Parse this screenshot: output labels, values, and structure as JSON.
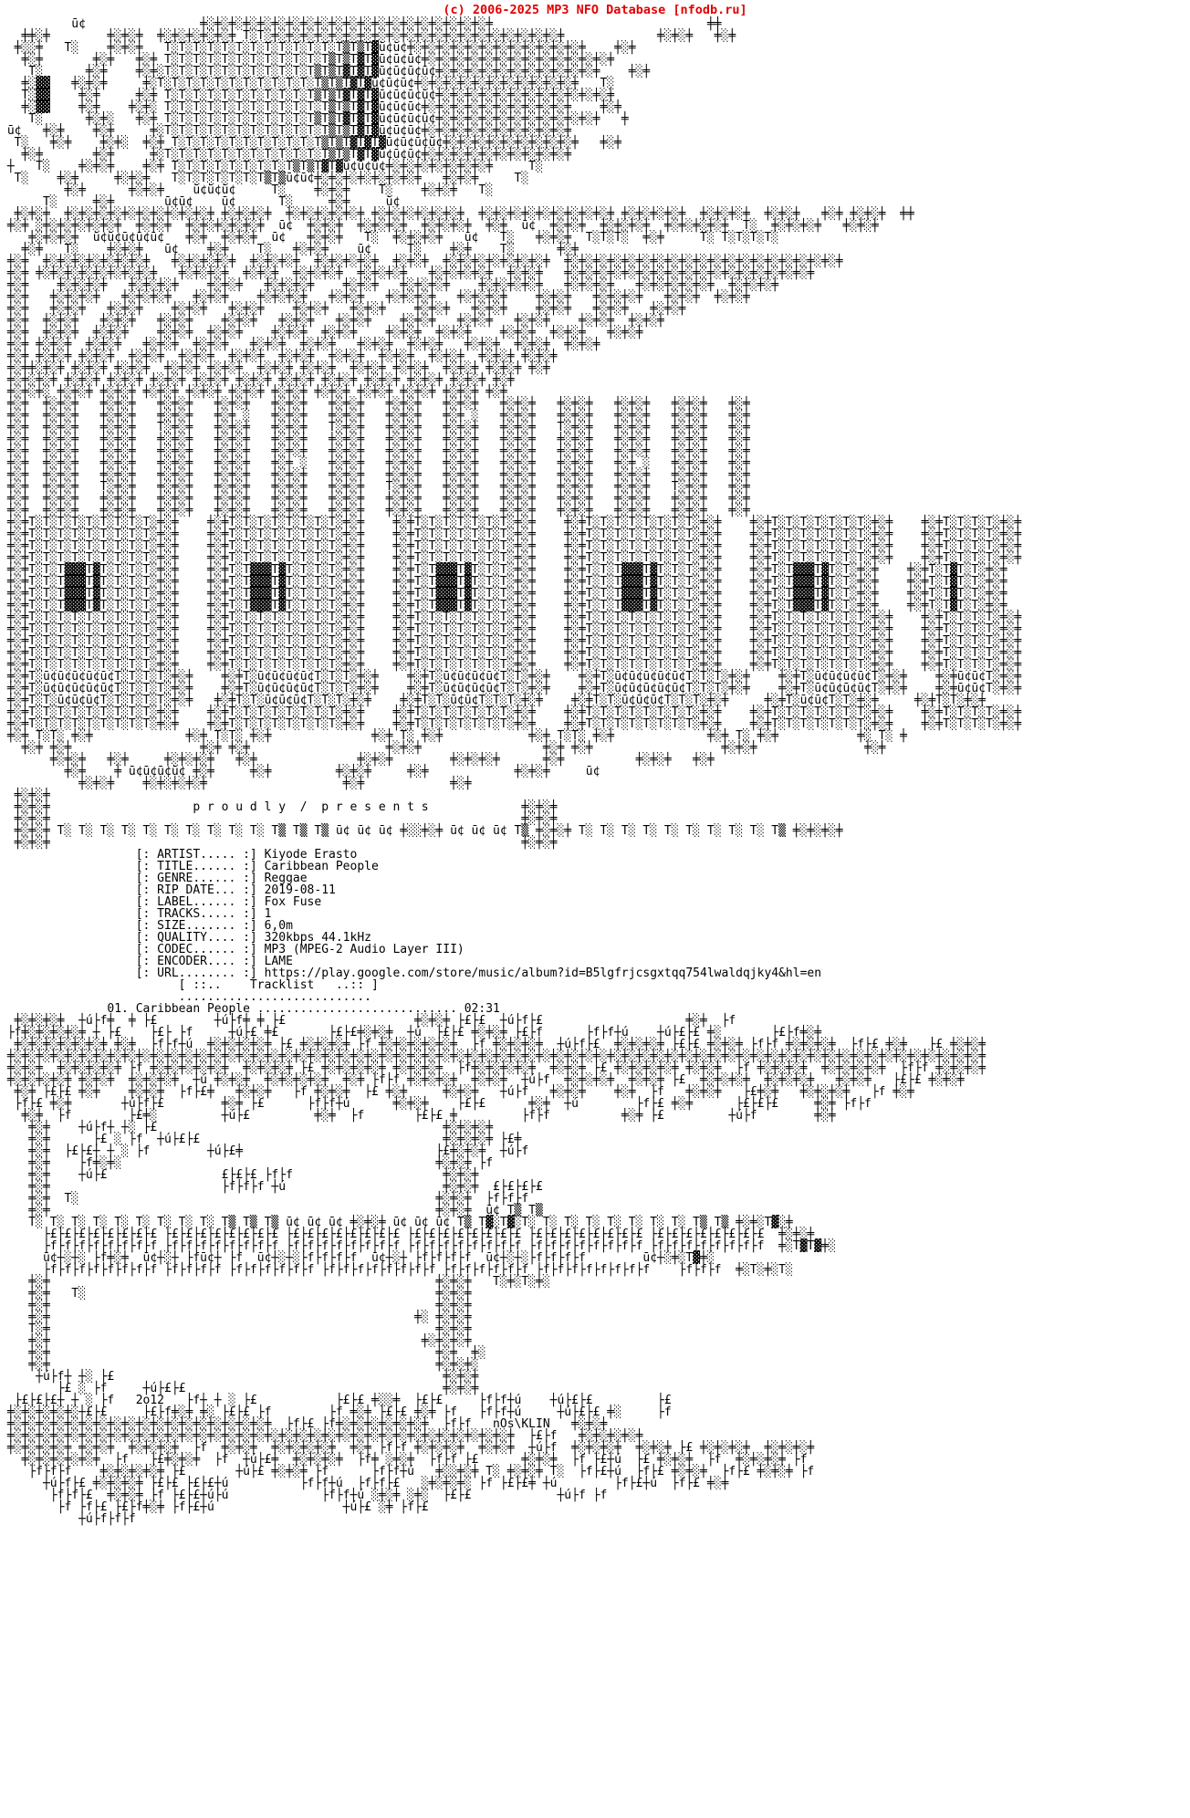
{
  "colors": {
    "header_red": "#e10000",
    "text": "#000000",
    "background": "#ffffff"
  },
  "header": {
    "copyright": "(c) 2006-2025 MP3 NFO Database [nfodb.ru]"
  },
  "release_info": {
    "fields": [
      {
        "label": "ARTIST",
        "value": "Kiyode Erasto"
      },
      {
        "label": "TITLE",
        "value": "Caribbean People"
      },
      {
        "label": "GENRE",
        "value": "Reggae"
      },
      {
        "label": "RIP DATE",
        "value": "2019-08-11"
      },
      {
        "label": "LABEL",
        "value": "Fox Fuse"
      },
      {
        "label": "TRACKS",
        "value": "1"
      },
      {
        "label": "SIZE",
        "value": "6,0m"
      },
      {
        "label": "QUALITY",
        "value": "320kbps 44.1kHz"
      },
      {
        "label": "CODEC",
        "value": "MP3 (MPEG-2 Audio Layer III)"
      },
      {
        "label": "ENCODER",
        "value": "LAME"
      },
      {
        "label": "URL",
        "value": "https://play.google.com/store/music/album?id=B5lgfrjcsgxtqq754lwaldqjky4&hl=en"
      }
    ],
    "lines": [
      "                   [: ARTIST..... :] Kiyode Erasto",
      "                   [: TITLE...... :] Caribbean People",
      "                   [: GENRE...... :] Reggae",
      "                   [: RIP DATE... :] 2019-08-11",
      "                   [: LABEL...... :] Fox Fuse",
      "                   [: TRACKS..... :] 1",
      "                   [: SIZE....... :] 6,0m",
      "                   [: QUALITY.... :] 320kbps 44.1kHz",
      "                   [: CODEC...... :] MP3 (MPEG-2 Audio Layer III)",
      "                   [: ENCODER.... :] LAME",
      "                   [: URL........ :] https://play.google.com/store/music/album?id=B5lgfrjcsgxtqq754lwaldqjky4&hl=en"
    ]
  },
  "tracklist": {
    "header_lines": [
      "                         [ ::..    Tracklist   ..:: ]",
      "                         ..........................."
    ],
    "tracks": [
      {
        "number": "01",
        "title": "Caribbean People",
        "duration": "02:31"
      }
    ],
    "track_lines": [
      "               01. Caribbean People ............................ 02:31"
    ]
  },
  "art": {
    "credits": {
      "year": "2o12",
      "artist_tag": "nOs\\KLIN",
      "banner_text": "p r o u d l y  /  p r e s e n t s"
    },
    "top": [
      "          ū¢                ╪░╪░╪░╪░╪░╪░╪░╪░╪░╪░╪░╪░╪░╪░╪░╪░╪░╪░╪░╪░╪                              ╪╪",
      "   ╪╪░╪        ╪░╪░╪  ╪░╪░╪░╪░╪░╪ T░T░╪░╪░╪░╪░╪░╪░╪░╪░╪░╪░╪░╪░╪░╪░╪░╪░╪░╪░╪░╪░╪             ╪░╪░╪   ╪░╪",
      "  ╪░░╪   T░    ╪░╪░╪   T░T░T░T░T░T░T░T░T░T░T░T░T▒T▒T▓ū¢ū¢╪░╪░╪░╪░╪░╪░╪░╪░╪░╪░╪░╪░╪    ╪░╪",
      "   ╪░╪       ╪░╪   ╪░╪ T░T░T░T░T░T░T░T░T░T░T░T▒T▒T▓T▓ū¢ū¢ū¢╪░╪░╪░╪░╪░╪░╪░╪░╪░╪░╪░╪░╪░╪",
      "    T░      ╪░╪    ╪░╪░T░T░T░T░T░T░T░T░T░T░T▒T▒T▓T▓T▓ū¢ū¢ū¢ū¢╪░╪░╪░╪░╪░╪░╪░╪░╪░╪░╪░╪    ╪░╪",
      "   ╪░▓▓   ╪░╪░╪     ╪░T░T░T░T░T░T░T░T░T░T░T░T▒T▒T▓T▓ū¢ū¢ū¢╪░╪░╪░╪░╪░╪░╪░╪░╪░╪░╪░╪   T░",
      "   T░▓▓    ╪░╪     ╪░╪ T░T░T░T░T░T░T░T░T░T░T▒T▒T▓T▓T▓ū¢ū¢ū¢ū¢╪░╪░╪░╪░╪░╪░╪░╪░╪░╪░╪░╪░╪",
      "   ╪░▓▓    ╪░╪    ╪░╪░ T░T░T░T░T░T░T░T░T░T░T░T▒T▒T▓T▓ū¢ū¢ū¢╪░╪░╪░╪░╪░╪░╪░╪░╪░╪░╪    ╪░╪",
      "    T░      ╪░╪░   ╪░╪ T░T░T░T░T░T░T░T░T░T░T▒T▒T▓T▓T▓ū¢ū¢ū¢ū¢╪░╪░╪░╪░╪░╪░╪░╪░╪░╪░╪░╪   ╪",
      " ū¢   ╪░╪    ╪░╪     ╪░T░T░T░T░T░T░T░T░T░T░T░T▒T▒T▓T▓ū¢ū¢ū¢╪░╪░╪░╪░╪░╪░╪░╪░╪░╪░╪",
      "  T░   ╪░╪    ╪░╪░  ╪░╪ T░T░T░T░T░T░T░T░T░T░T▒T▒T▓T▓T▓ū¢ū¢ū¢ū¢╪░╪░╪░╪░╪░╪░╪░╪░╪░╪   ╪░╪",
      "   ╪░╪       ╪░╪     ╪░T░T░T░T░T░T░T░T░T░T░T░T▒T▒T▓T▓ū¢ū¢ū¢╪░╪░╪░╪░╪░╪░╪░╪░╪░╪░╪",
      " ┼   T░    ╪░╪░╪    ╪░╪ T░T░T░T░T░T░T░T░T▒T▒T▓T▓ū¢ū¢ū¢╪░╪░╪░╪░╪░╪░╪░╪     T░",
      "  T░    ╪░╪     ╪░╪░╪   T░T░T░T░T░T░T▒T▒ū¢ū¢╪░╪░╪░╪░╪░╪░╪░╪   ╪░╪░╪     T░",
      "         ╪░╪      ╪░╪░╪    ū¢ū¢ū¢     T░    ╪░╪░╪    T░    ╪░╪░╪   T░",
      "      T░     ╪░╪       ū¢ū¢    ū¢      T░     ╪░╪     ū¢",
      "  ╪░╪░╪  ╪░╪░╪░╪░╪░╪░╪░╪░╪░╪░╪ ╪░╪░╪░╪  ╪░╪░╪░╪░╪░╪ ╪░╪░╪░╪░╪░╪░╪  ╪░╪░╪░╪░╪░╪░╪░╪░╪░╪ ╪░╪░╪░╪░╪  ╪░╪░╪░╪  ╪░╪░╪   ╪░╪ ╪░╪░╪  ╪╪",
      " ╪░╪ ░╪░╪░╪░╪░╪░╪  ╪░╪░╪  ╪░╪░╪░╪░╪░╪  ū¢  ╪░╪░╪  ╪░╪░╪░╪  ╪░╪░╪░╪  ╪░╪  ū¢  ╪░╪░╪  ╪░╪░╪░╪  ╪░╪░╪░╪░╪  T░  ╪░╪░╪░╪   ╪░╪░╪",
      "    ╪░╪░╪░╪  ū¢ū¢ū¢ū¢ū¢   ╪░╪  ╪░╪░╪  ū¢   ╪░╪░╪   T░  ╪░╪░╪░╪   ū¢   T░   ╪░╪░╪  T░T░T░  ╪░╪     T░ T░T░T░T░",
      "   ╪░╪   T░    ╪░╪░╪   ū¢    ╪░╪    T░   ╪░╪░╪    ū¢     T░    ╪░╪    T░      ╪░╪",
      " ╪░╪  ╪░╪░╪░╪░╪░╪░╪░╪   ╪░╪░╪░╪░╪  ╪░╪░╪░╪  ╪░╪░╪░╪░╪  ╪░╪░╪  ╪░╪░╪░╪░╪░╪░╪░╪  ╪░╪░╪░╪░╪░╪░╪░╪░╪░╪░╪░╪░╪░╪░╪░╪░╪░╪░╪░╪",
      " ╪░╪ ╪░╪░╪░╪░╪░╪░╪░╪░╪   ╪░╪░╪░╪  ╪░╪░╪  ╪░╪░╪░╪  ╪░╪░╪░╪   ╪░╪░╪░╪░╪  ╪░╪░╪   ╪░╪░╪░╪░╪░╪░╪░╪░╪░╪░╪░╪░╪░╪░╪░╪░╪░╪",
      " ╪░╪    ╪░╪░╪░╪   ╪░╪░╪░╪    ╪░╪░╪   ╪░╪░╪░╪    ╪░╪░╪   ╪░╪░╪░╪    ╪░╪░╪░╪░╪   ╪░╪░╪░╪   ╪░╪░╪░╪░╪░╪  ╪░╪░╪░╪",
      " ╪░╪   ╪░╪░╪░╪   ╪░╪░╪░╪   ╪░╪░╪    ╪░╪░╪░╪   ╪░╪░╪   ╪░╪░╪░╪   ╪░╪░╪░╪    ╪░╪░╪   ╪░╪░╪░╪   ╪░╪░╪  ╪░╪░╪",
      " ╪░╪   ╪░╪░╪   ╪░╪░╪    ╪░╪░╪   ╪░╪░╪    ╪░╪░╪   ╪░╪░╪    ╪░╪░╪   ╪░╪░╪    ╪░╪░╪   ╪░╪░╪   ╪░╪░╪",
      " ╪░╪  ╪░╪░╪   ╪░╪░╪   ╪░╪░╪    ╪░╪░╪   ╪░╪░╪   ╪░╪░╪    ╪░╪░╪   ╪░╪░╪   ╪░╪░╪    ╪░╪░╪  ╪░╪░╪",
      " ╪░╪  ╪░╪░╪  ╪░╪░╪    ╪░╪░╪  ╪░╪░╪    ╪░╪░╪  ╪░╪░╪    ╪░╪░╪  ╪░╪░╪    ╪░╪░╪  ╪░╪░╪   ╪░╪░╪",
      " ╪░╪ ╪░╪░╪  ╪░╪░╪   ╪░╪░╪  ╪░╪░╪   ╪░╪░╪  ╪░╪░╪   ╪░╪░╪  ╪░╪░╪   ╪░╪░╪  ╪░╪░╪  ╪░╪░╪",
      " ╪░╪ ╪░╪░╪ ╪░╪░╪  ╪░╪░╪  ╪░╪░╪  ╪░╪░╪  ╪░╪░╪  ╪░╪░╪  ╪░╪░╪  ╪░╪░╪  ╪░╪░╪ ╪░╪░╪",
      " ╪░╪╪░╪░╪ ╪░╪░╪ ╪░╪░╪  ╪░╪░╪ ╪░╪░╪  ╪░╪░╪ ╪░╪░╪  ╪░╪░╪ ╪░╪░╪  ╪░╪░╪ ╪░╪░╪ ╪░╪",
      " ╪░╪░╪░╪ ╪░╪░╪ ╪░╪░╪ ╪░╪░╪ ╪░╪░╪ ╪░╪░╪ ╪░╪░╪ ╪░╪░╪ ╪░╪░╪ ╪░╪░╪ ╪░╪░╪ ╪░╪",
      " ╪░╪░╪░ ╪░╪░╪ ╪░╪░╪ ╪░╪░╪ ╪░╪░╪ ╪░╪░╪ ╪░╪░╪ ╪░╪░╪ ╪░╪░╪ ╪░╪░╪ ╪░╪░╪ ╪░╪",
      " ╪░╪  ╪░╪░╪   ╪░╪░╪   ╪░╪░╪   ╪░╪░╪   ╪░╪░╪   ╪░╪░╪   ╪░╪░╪   ╪░╪░╪   ╪░╪░╪   ╪░╪░╪   ╪░╪░╪   ╪░╪░╪   ╪░╪",
      " ╪░╪  ╪░╪░╪   ╪░╪░╪   ╪░╪░╪   ╪░╪ ░   ╪░╪░╪   ╪░╪░╪   ╪░╪░╪   ╪░╪ ░   ╪░╪░╪   ╪░╪░╪   ╪░╪░╪   ╪░╪░╪   ╪░╪",
      " ╪░╪  ╪░╪░╪   ╪░╪░╪   T░╪░╪   ╪░╪░╪   ╪░╪░╪   T░╪░╪   ╪░╪░╪   ╪░╪░╪   ╪░╪░╪   T░╪░╪   ╪░╪░╪   ╪░╪░╪   ╪░╪",
      " ╪░╪  ╪░╪░╪   ╪░╪░╪   ╪░╪░╪   ╪░╪░╪   ╪░╪░╪   ╪░╪░╪   ╪░╪░╪   ╪░╪░╪   ╪░╪░╪   ╪░╪░╪   ╪░╪░╪   ╪░╪░╪   ╪░╪",
      " ╪░╪  ╪░╪░╪   ╪░╪░╪   ╪░╪░╪   ╪░╪░╪   ╪░╪░╪   ╪░╪░╪   ╪░╪░╪   ╪░╪░╪   ╪░╪░╪   ╪░╪░╪   ╪░╪░╪   ╪░╪░╪   ╪░╪",
      " ╪░╪  ╪░╪░╪   ╪░╪░╪   ╪░╪░╪   ╪░╪░╪   ╪░╪ ░   ╪░╪░╪   ╪░╪░╪   ╪░╪░╪   ╪░╪░╪   ╪░╪░╪   ╪░╪ ░   ╪░╪░╪   ╪░╪",
      " ╪░╪  ╪░╪░╪   ╪░╪░╪   ╪░╪░╪   ╪░╪░╪   ╪░╪░╪   ╪░╪░╪   ╪░╪░╪   ╪░╪░╪   ╪░╪░╪   ╪░╪░╪   ╪░╪░╪   ╪░╪░╪   ╪░╪",
      " ╪░╪  ╪░╪░╪   T░╪░╪   ╪░╪░╪   ╪░╪░╪   ╪░╪░╪   ╪░╪░╪   T░╪░╪   ╪░╪░╪   ╪░╪░╪   ╪░╪░╪   ╪░╪░╪   T░╪░╪   ╪░╪",
      " ╪░╪  ╪░╪░╪   ╪░╪░╪   ╪░╪░╪   ╪░╪░╪   ╪░╪░╪   ╪░╪░╪   ╪░╪░╪   ╪░╪░╪   ╪░╪░╪   ╪░╪░╪   ╪░╪░╪   ╪░╪░╪   ╪░╪",
      " ╪░╪  ╪░╪░╪   ╪░╪░╪   ╪░╪░╪   ╪░╪░╪   ╪░╪░╪   ╪░╪░╪   ╪░╪░╪   ╪░╪░╪   ╪░╪░╪   ╪░╪░╪   ╪░╪░╪   ╪░╪░╪   ╪░╪",
      " ╪░╪T░T░T░T░T░T░T░T░T░╪░╪    ╪░╪T░T░T░T░T░T░T░T░╪░╪    ╪░╪T░T░T░T░T░T░T░╪░╪    ╪░╪T░T░T░T░T░T░T░T░╪░╪    ╪░╪T░T░T░T░T░T░T░╪░╪    ╪░╪T░T░T░T░╪░╪",
      " ╪░╪T░T░T░T░T░T░T░T░T░╪░╪    ╪░╪T░T░T░T░T░T░T░T░╪░╪    ╪░╪T░T░T░T░T░T░T░╪░╪    ╪░╪T░T░T░T░T░T░T░T░╪░╪    ╪░╪T░T░T░T░T░T░T░╪░╪    ╪░╪T░T░T░T░╪░╪",
      " ╪░╪T░T░T░T░T░T░T░T░T░╪░╪    ╪░╪T░T░T░T░T░T░T░T░╪░╪    ╪░╪T░T░T░T░T░T░T░╪░╪    ╪░╪T░T░T░T░T░T░T░T░╪░╪    ╪░╪T░T░T░T░T░T░T░╪░╪    ╪░╪T░T░T░T░╪░╪",
      " ╪░╪T░T░T░T░T░T░T░T░T░╪░╪    ╪░╪T░T░T░T░T░T░T░T░╪░╪    ╪░╪T░T░T░T░T░T░T░╪░╪    ╪░╪T░T░T░T░T░T░T░T░╪░╪    ╪░╪T░T░T░T░T░T░T░╪░╪    ╪░╪T░T░T░T░╪░╪",
      " ╪░╪T░T░T▓▓▓T▓T░T░T░T░╪░╪    ╪░╪T░T▓▓▓T▓T░T░T░T░╪░╪    ╪░╪T░T▓▓▓T▓T░T░T░╪░╪    ╪░╪T░T░T▓▓▓T▓T░T░T░╪░╪    ╪░╪T░T▓▓▓T▓T░T░╪░╪    ╪░╪T░T▓T░T░╪░╪",
      " ╪░╪T░T░T▓▓▓T▓T░T░T░T░╪░╪    ╪░╪T░T▓▓▓T▓T░T░T░T░╪░╪    ╪░╪T░T▓▓▓T▓T░T░T░╪░╪    ╪░╪T░T░T▓▓▓T▓T░T░T░╪░╪    ╪░╪T░T▓▓▓T▓T░T░╪░╪    ╪░╪T░T▓T░T░╪░╪",
      " ╪░╪T░T░T▓▓▓T▓T░T░T░T░╪░╪    ╪░╪T░T▓▓▓T▓T░T░T░T░╪░╪    ╪░╪T░T▓▓▓T▓T░T░T░╪░╪    ╪░╪T░T░T▓▓▓T▓T░T░T░╪░╪    ╪░╪T░T▓▓▓T▓T░T░╪░╪    ╪░╪T░T▓T░T░╪░╪",
      " ╪░╪T░T░T▓▓▓T▓T░T░T░T░╪░╪    ╪░╪T░T▓▓▓T▓T░T░T░T░╪░╪    ╪░╪T░T▓▓▓T▓T░T░T░╪░╪    ╪░╪T░T░T▓▓▓T▓T░T░T░╪░╪    ╪░╪T░T▓▓▓T▓T░T░╪░╪    ╪░╪T░T▓T░T░╪░╪",
      " ╪░╪T░T░T░T░T░T░T░T░T░╪░╪    ╪░╪T░T░T░T░T░T░T░T░╪░╪    ╪░╪T░T░T░T░T░T░T░╪░╪    ╪░╪T░T░T░T░T░T░T░T░╪░╪    ╪░╪T░T░T░T░T░T░T░╪░╪    ╪░╪T░T░T░T░╪░╪",
      " ╪░╪T░T░T░T░T░T░T░T░T░╪░╪    ╪░╪T░T░T░T░T░T░T░T░╪░╪    ╪░╪T░T░T░T░T░T░T░╪░╪    ╪░╪T░T░T░T░T░T░T░T░╪░╪    ╪░╪T░T░T░T░T░T░T░╪░╪    ╪░╪T░T░T░T░╪░╪",
      " ╪░╪T░T░T░T░T░T░T░T░T░╪░╪    ╪░╪T░T░T░T░T░T░T░T░╪░╪    ╪░╪T░T░T░T░T░T░T░╪░╪    ╪░╪T░T░T░T░T░T░T░T░╪░╪    ╪░╪T░T░T░T░T░T░T░╪░╪    ╪░╪T░T░T░T░╪░╪",
      " ╪░╪T░T░T░T░T░T░T░T░T░╪░╪    ╪░╪T░T░T░T░T░T░T░T░╪░╪    ╪░╪T░T░T░T░T░T░T░╪░╪    ╪░╪T░T░T░T░T░T░T░T░╪░╪    ╪░╪T░T░T░T░T░T░T░╪░╪    ╪░╪T░T░T░T░╪░╪",
      " ╪░╪T░T░T░T░T░T░T░T░T░╪░╪    ╪░╪T░T░T░T░T░T░T░T░╪░╪    ╪░╪T░T░T░T░T░T░T░╪░╪    ╪░╪T░T░T░T░T░T░T░T░╪░╪    ╪░╪T░T░T░T░T░T░T░╪░╪    ╪░╪T░T░T░T░╪░╪",
      " ╪░╪T░ū¢ū¢ū¢ū¢ū¢T░T░T░T░╪░╪    ╪░╪T░ū¢ū¢ū¢ū¢T░T░T░╪░╪    ╪░╪T░ū¢ū¢ū¢ū¢T░T░╪░╪    ╪░╪T░ū¢ū¢ū¢ū¢ū¢T░T░T░╪░╪    ╪░╪T░ū¢ū¢ū¢ū¢T░╪░╪    ╪░╪ū¢ū¢T░╪░╪",
      " ╪░╪T░ū¢ū¢ū¢ū¢ū¢T░T░T░T░╪░╪    ╪░╪T░ū¢ū¢ū¢ū¢T░T░T░╪░╪    ╪░╪T░ū¢ū¢ū¢ū¢T░T░╪░╪    ╪░╪T░ū¢ū¢ū¢ū¢ū¢T░T░T░╪░╪    ╪░╪T░ū¢ū¢ū¢ū¢T░╪░╪    ╪░╪ū¢ū¢T░╪░╪",
      " ╪░╪T░T░ū¢ū¢ū¢T░T░T░T░T░╪░╪   ╪░╪T░T░ū¢ū¢ū¢T░T░T░╪░╪    ╪░╪T░T░ū¢ū¢T░T░T░╪░╪    ╪░╪T░T░ū¢ū¢ū¢T░T░T░╪░╪     ╪░╪T░ū¢ū¢T░T░╪░╪     ╪░╪T░T░╪░╪",
      " ╪░╪T░T░T░T░T░T░T░T░T░╪░╪    ╪░╪T░T░T░T░T░T░T░T░╪░╪    ╪░╪T░T░T░T░T░T░T░╪░╪    ╪░╪T░T░T░T░T░T░T░T░╪░╪    ╪░╪T░T░T░T░T░T░T░╪░╪    ╪░╪T░T░T░T░╪░╪",
      " ╪░╪T░T░T░T░T░T░T░T░T░╪░╪    ╪░╪T░T░T░T░T░T░T░T░╪░╪    ╪░╪T░T░T░T░T░T░T░╪░╪    ╪░╪T░T░T░T░T░T░T░T░╪░╪    ╪░╪T░T░T░T░T░T░T░╪░╪    ╪░╪T░T░T░T░╪░╪",
      " ╪░╪ T░T░ ╪░╪             ╪░╪ T░T░ ╪░╪              ╪░╪ T░ ╪░╪            ╪░╪ T░T░ ╪░╪             ╪░╪ T░ ╪░╪           ╪░ T░ ╪",
      "   ╪░╪ ╪░╪                  ╪░╪ ╪░╪                   ╪░╪░╪                 ╪░╪ ╪░╪                  ╪░╪░╪               ╪░╪",
      "       ╪░╪░╪   ╪░╪     ╪░╪░╪░╪   ╪░╪              ╪░╪░╪        ╪░╪░╪░╪      ╪░╪          ╪░╪░╪   ╪░╪",
      "         ╪░╪    ╪ ū¢ū¢ū¢ū¢ ╪░╪     ╪░╪         ╪░╪░╪     ╪░╪            ╪░╪░╪     ū¢",
      "           ╪░╪░╪    ╪░╪░╪░╪░╪                   ╪░╪            ╪░╪",
      "  ╪░╪░╪",
      "  ╪░╪░╪                    p r o u d l y  /  p r e s e n t s             ╪░╪░╪",
      "  ╪░╪░╪                                                                  ╪░╪░╪",
      "  ╪░╪░╪ T░ T░ T░ T░ T░ T░ T░ T░ T░ T░ T▒ T▒ T▒ ū¢ ū¢ ū¢ ╪░░╪░╪ ū¢ ū¢ ū¢ T▒ ╪░╪░╪ T░ T░ T░ T░ T░ T░ T░ T░ T░ T▒ ╪░╪░╪░╪",
      "  ╪░╪░╪                                                                  ╪░╪░╪"
    ],
    "bottom": [
      "  ╪░╪░╪░╪  ┼ú├f╪  ╪ ├£        ┼ú├f╪ ╪ ├£                  ╪░╪░╪ ├£├£  ┼ú├f├£                    ╪░╪  ├f",
      " ├f╪░╪░╪░╪░╪ ┼ ├£    ├£├ ├f     ┼ú├£ ╪£       ├£├£╪░╪░╪  ┼ú  ├£├£ ╪░╪░╪ ├£├f      ├f├f┼ú    ┼ú├£├£ ╪░       ├£├f╪░╪",
      "  ╪░╪░╪░╪░╪░╪░╪ ╪░╪  ├f├f┼ú  ╪░╪░╪░╪░╪ ├£ ╪░╪░╪░╪ ├f ╪░╪░╪░╪░╪░╪  ├f ╪░╪░╪░╪  ┼ú├f├£  ╪░╪░╪░╪ ├£├£ ╪░╪░╪ ├f├f ╪░╪░╪░╪  ├f├£ ╪░╪   ├£ ╪░╪░╪",
      " ╪░╪░╪░╪░╪░╪░╪░╪░╪░╪░╪░╪░╪░╪░╪░╪░╪░╪░╪░╪░╪░╪░╪░╪░╪░╪░╪░╪░╪░╪░╪░╪░╪░╪░╪░╪░╪░╪░╪░╪░╪░╪░╪░╪░╪░╪░╪░╪░╪░╪░╪░╪░╪░╪░╪░╪░╪░╪░╪░╪░╪░╪░╪░╪░╪░╪░╪░╪░╪",
      " ╪░╪░╪  ╪░╪░╪░╪░╪ ├f ╪░╪░╪░╪░╪░╪  ╪░╪░╪░╪ ├£ ╪░╪░╪░╪░╪ ╪░╪░╪░╪  ├f╪░╪░╪░╪░╪  ╪░╪░╪ ├£ ╪░╪░╪░╪░╪ ╪░╪░╪  ├f ╪░╪░╪░╪  ╪░╪░╪░╪░╪  ├f├f ╪░╪░╪░╪",
      " ╪░╪░╪░╪░╪ ╪░╪░╪  ╪░╪░╪░╪  ┼ú ╪░╪░╪  ╪░╪░╪░╪░╪  ╪░╪ ├f├f ╪░╪░╪░╪  ╪░╪░╪  ┼ú├f  ╪░╪░╪░╪  ╪░╪░╪ ├£  ╪░╪░╪░╪  ╪░╪░╪░╪   ╪░╪░╪   ├£├£ ╪░╪░╪",
      "  ╪░╪ ├£├£ ╪░╪    ╪░╪░╪  ├f├£╪   ╪░╪░╪   ├f ╪░╪░╪  ├£ ╪░╪     ╪░╪░╪   ┼ú├f   ╪░╪░╪    ╪░╪  ├f   ╪░╪░╪   ├£╪░╪   ╪░╪░╪░╪   ├f ╪░╪",
      "  ├f├£ ╪░╪       ┼ú├f├£        ╪░╪ ├£      ├f├f┼ú      ╪░╪░╪    ├£├£      ╪░╪  ┼ú        ├f├£ ╪░╪      ├£├£├£     ╪░╪ ├f├f",
      "   ╪░╪  ├f        ├£╪░         ┼ú├£         ╪░╪  ├f       ├£├£ ╪         ├f├f          ╪░╪ ├£         ┼ú├f        ╪░╪",
      "    ╪░╪    ┼ú├f┼ ┼░ ├£                                        ╪░╪░╪░╪",
      "    ╪░╪      ├£ ░ ├f  ┼ú├£├£                                  ╪░╪░╪░╪ ├£╪",
      "    ╪░╪  ├£├£┼ ┼ ░ ├f        ┼ú├£╪                           ├£╪░╪░╪  ┼ú├f",
      "    ╪░╪    ├f╪░╪░                                            ╪░╪░╪ ├f",
      "    ╪░╪    ┼ú├£                £├£├£ ├f├f                     ╪░╪░╪",
      "    ╪░╪                        ├f├f├f ┼ú                      ╪░╪░╪  £├£├£├£",
      "    ╪░╪  T░                                                  ╪░╪░╪  ├f├f├f",
      "    ╪░╪                                                      ╪░╪░╪  ū¢ T▒ T▒",
      "    T░ T░ T░ T░ T░ T░ T░ T░ T░ T▒ T▒ T▒ ū¢ ū¢ ū¢ ╪░╪░╪ ū¢ ū¢ ū¢ T▒ T▓░T▓░T░ T░ T░ T░ T░ T░ T░ T░ T▒ T▒ ╪░╪░T▓░╪",
      "      ├£├£├£├£├£├£├£├£ ├£├£├£├£├£├£├£├£ ├£├£├£├£├£├£├£├£ ├£├£├£├£├£├£├£├£ ├£├£├£├£├£├£├£├£ ├£├£├£├£├£├£├£├£  ╪░╪░╪",
      "      ├f├f├f├f├f├f├f├f ├f├f├f├f├f├f├f├f ├f├f├f├f├f├f├f├f ├f├f├f├f├f├f├f├f ├f├f├f├f├f├f├f├f ├f├f├f├f├f├f├f├f  ╪░T▓T▓╪░",
      "      ū¢┼░┼░ ├f╪░╪  ū¢┼░┼ ├fū¢┼ ├f  ū¢┼░┼░├f├f├f├f  ū¢┼░┼ ├f├f├f├f  ū¢┼░┼░├f├f├f├f        ū¢┼░╪░T▓╪░",
      "      ├f├f├f├f├f├f├f├f ├f├f├f├f ├f├f├f├f├f├f ├f├f├f├f├f├f├f├f ├f├f├f├f├f├f ├f├f├f├f├f├f├f├f    ├f├f├f  ╪░T░╪░T░",
      "    ╪░╪                                                      ╪░╪░╪   T░╪░T░╪░",
      "    ╪░╪   T░                                                 ╪░╪░╪",
      "    ╪░╪                                                      ╪░╪░╪",
      "    ╪░╪                                                   ╪░ ╪░╪░╪",
      "    T░╪                                                      ╪░╪░╪",
      "    ╪░╪                                                    ╪░╪░╪░╪",
      "    ╪░╪                                                      ╪░╪  ╪░",
      "    ╪░╪                                                      ╪░╪░╪░",
      "     ┼ú├f┼ ┼░ ├£                                              ╪░╪░╪",
      "        ├£ ░ ├f     ┼ú├£├£                                    ╪░╪░╪",
      "  ├£├£├£┼ ┼ ░ ├f   2o12   ├f┼ ┼ ░ ├£           ├£├£ ╪░░╪  ├£├£     ├f├f┼ú    ┼ú├£├£         ├£",
      " ╪░╪░╪░╪░╪░┼£├£     ├£├f╪░╪ ╪░ ├£├£ ├f        ├f ╪░╪ ├£├£ ╪░╪ ├f   ├f├f┼ú     ┼ú├£├£ ╪░     ├f",
      " ╪░╪░╪░╪░╪░╪░╪░╪░╪░╪░╪░╪░╪░╪░╪░╪░╪░╪░╪  ├f├£ ├f╪░╪░╪░╪░╪░╪░╪  ├f├f   nOs\\KLIN   ╪░╪░╪",
      " ╪░╪░╪░╪░╪░╪░╪░╪░╪░╪░╪░╪░╪░╪░╪░╪░╪░╪░╪░╪░╪░╪░╪░╪░╪░╪░╪░╪░╪░╪░╪░╪░╪░╪░╪░╪  ├£├f   ╪░╪░╪░╪░╪",
      " ╪░╪░╪░╪░╪ ╪░╪░╪  ╪░╪░╪░╪  ├f  ╪░╪░╪  ╪░╪░╪░╪░╪  ╪░╪ ├f├f ╪░╪░╪░╪  ╪░╪░╪  ┼ú├f  ╪░╪░╪░╪  ╪░╪░╪ ├£ ╪░╪░╪░╪  ╪░╪░╪░╪",
      "   ╪░╪░╪░╪░╪░╪  ├f   ├£╪░╪░╪  ├f  ┼ú├£╪  ╪░╪░╪░╪  ├f╪ ░╪░╪  ├f├f ├£      ╪░╪░╪  ├f ├£┼ú  ├£ ╪░╪░╪  ├f  ╪░╪░╪░╪ ├f",
      "    ├f├f├f    ╪░╪░╪░╪░╪ ├£       ┼ú├£ ╪░╪░╪ ├f      ├f├f┼ú   ╪░░╪░╪ T░ ╪░╪░╪ T░  ├f├£┼ú  ├f├£ ╪░╪░╪  ├f├£ ╪░╪░╪ ├f",
      "      ┼ú├f├£ ╪░╪░╪░╪ ├£├£ ├£├£┼ú          ├f├f┼ú  ├f├f├£   ░╪░╪░╪░ ├f ├£├£╪ ┼ú        ├f├£┼ú  ├f├£ ╪░╪",
      "       ├f├f├£  ╪░╪░╪ ├f ├£├£┼ú├ú             ├f├f┼ú ░╪░╪ ░╪░  ├£├£            ┼ú├f ├f",
      "        ├f ├f├£ ├£├f╪░╪ ├f├£┼ú                  ┼ú├£ ░╪ ├f├£",
      "           ┼ú├f├f├f"
    ]
  }
}
